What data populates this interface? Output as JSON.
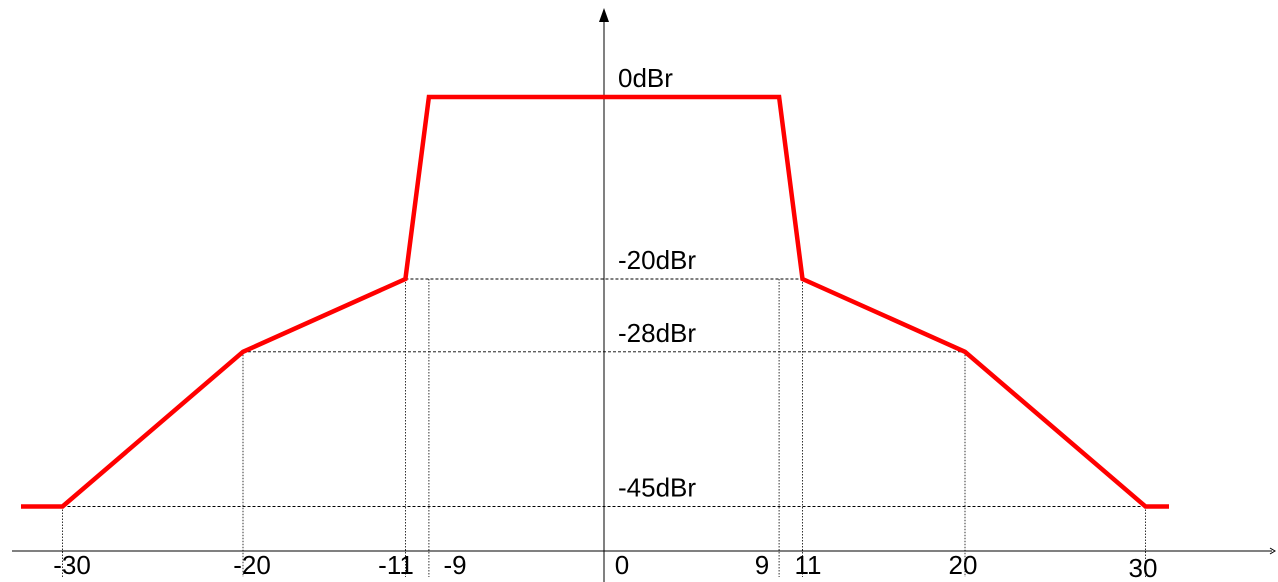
{
  "chart_data": {
    "type": "line",
    "title": "",
    "xlabel": "",
    "ylabel": "",
    "xlim": [
      -34,
      34
    ],
    "ylim": [
      -55,
      8
    ],
    "x_ticks": [
      "-30",
      "-20",
      "-11",
      "-9",
      "0",
      "9",
      "11",
      "20",
      "30"
    ],
    "y_levels": [
      "0dBr",
      "-20dBr",
      "-28dBr",
      "-45dBr"
    ],
    "series": [
      {
        "color": "#ff0000",
        "x": [
          -32.3,
          -30,
          -20,
          -11,
          -9.7,
          9.7,
          11,
          20,
          30,
          31.3
        ],
        "y": [
          -45,
          -45,
          -28,
          -20,
          0,
          0,
          -20,
          -28,
          -45,
          -45
        ]
      }
    ],
    "reference_lines": {
      "horizontal": [
        {
          "y": -20,
          "x_from": -11,
          "x_to": 11
        },
        {
          "y": -28,
          "x_from": -20,
          "x_to": 20
        },
        {
          "y": -45,
          "x_from": -30,
          "x_to": 30
        }
      ],
      "vertical": [
        -30,
        -20,
        -11,
        -9.7,
        9.7,
        11,
        20,
        30
      ]
    },
    "colors": {
      "mask": "#ff0000",
      "axis": "#000000",
      "guide": "#000000"
    }
  }
}
